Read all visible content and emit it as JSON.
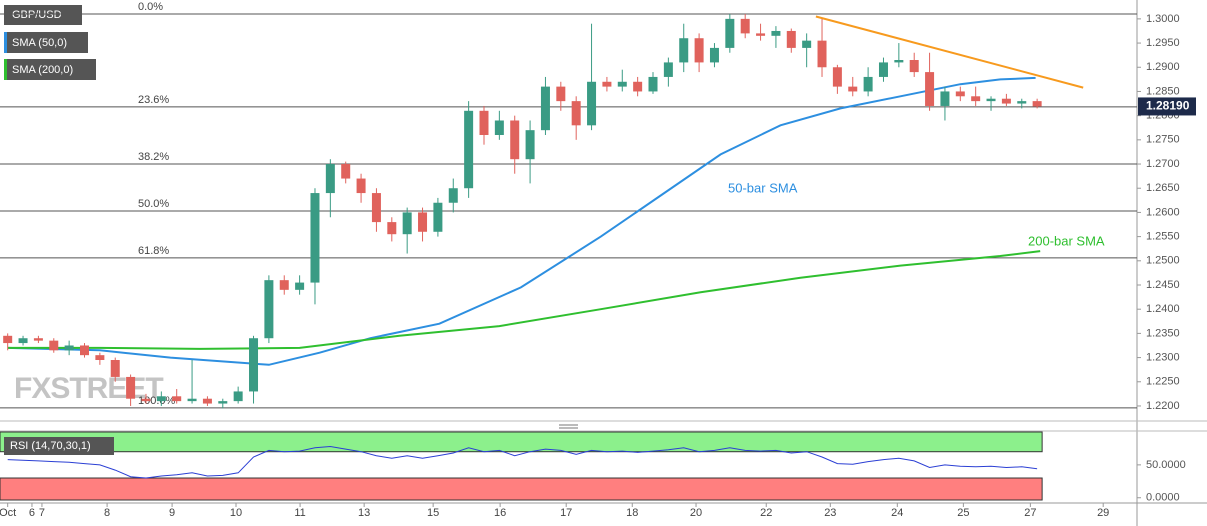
{
  "chart_data": [
    {
      "type": "candlestick",
      "title": "GBP/USD",
      "x": [
        0,
        1,
        2,
        3,
        4,
        5,
        6,
        7,
        8,
        9,
        10,
        11,
        12,
        13,
        14,
        15,
        16,
        17,
        18,
        19,
        20,
        21,
        22,
        23,
        24,
        25,
        26,
        27,
        28,
        29,
        30,
        31,
        32,
        33,
        34,
        35,
        36,
        37,
        38,
        39,
        40,
        41,
        42,
        43,
        44,
        45,
        46,
        47,
        48,
        49,
        50,
        51,
        52,
        53,
        54,
        55,
        56,
        57,
        58,
        59,
        60,
        61,
        62,
        63,
        64,
        65,
        66,
        67
      ],
      "open": [
        1.2345,
        1.233,
        1.234,
        1.2335,
        1.2315,
        1.2325,
        1.2305,
        1.2295,
        1.226,
        1.2215,
        1.221,
        1.222,
        1.221,
        1.2215,
        1.2205,
        1.221,
        1.223,
        1.234,
        1.246,
        1.244,
        1.2455,
        1.264,
        1.27,
        1.267,
        1.264,
        1.258,
        1.2555,
        1.26,
        1.256,
        1.262,
        1.265,
        1.281,
        1.276,
        1.279,
        1.271,
        1.277,
        1.286,
        1.283,
        1.278,
        1.287,
        1.286,
        1.287,
        1.285,
        1.288,
        1.291,
        1.296,
        1.291,
        1.294,
        1.3,
        1.297,
        1.2965,
        1.2975,
        1.294,
        1.2955,
        1.29,
        1.286,
        1.285,
        1.288,
        1.291,
        1.2915,
        1.289,
        1.282,
        1.285,
        1.284,
        1.283,
        1.2835,
        1.2825,
        1.283
      ],
      "high": [
        1.235,
        1.2345,
        1.2345,
        1.234,
        1.2335,
        1.233,
        1.231,
        1.23,
        1.2265,
        1.2225,
        1.223,
        1.2235,
        1.2295,
        1.222,
        1.2215,
        1.224,
        1.2345,
        1.247,
        1.247,
        1.247,
        1.265,
        1.271,
        1.2705,
        1.268,
        1.265,
        1.259,
        1.261,
        1.261,
        1.263,
        1.267,
        1.283,
        1.282,
        1.281,
        1.28,
        1.279,
        1.288,
        1.287,
        1.284,
        1.299,
        1.288,
        1.2895,
        1.288,
        1.289,
        1.292,
        1.299,
        1.297,
        1.295,
        1.301,
        1.301,
        1.299,
        1.2985,
        1.298,
        1.297,
        1.3,
        1.2905,
        1.288,
        1.29,
        1.292,
        1.295,
        1.293,
        1.293,
        1.286,
        1.286,
        1.286,
        1.284,
        1.2845,
        1.2835,
        1.2835
      ],
      "low": [
        1.2315,
        1.2325,
        1.233,
        1.231,
        1.2305,
        1.23,
        1.2285,
        1.225,
        1.22,
        1.2205,
        1.22,
        1.2205,
        1.2205,
        1.22,
        1.2195,
        1.2205,
        1.2205,
        1.233,
        1.243,
        1.243,
        1.241,
        1.259,
        1.266,
        1.262,
        1.256,
        1.254,
        1.2515,
        1.254,
        1.255,
        1.26,
        1.263,
        1.274,
        1.275,
        1.268,
        1.266,
        1.276,
        1.281,
        1.275,
        1.277,
        1.285,
        1.285,
        1.284,
        1.2845,
        1.286,
        1.289,
        1.289,
        1.29,
        1.293,
        1.296,
        1.2955,
        1.294,
        1.293,
        1.29,
        1.288,
        1.2845,
        1.284,
        1.284,
        1.287,
        1.29,
        1.288,
        1.281,
        1.279,
        1.283,
        1.282,
        1.281,
        1.282,
        1.2815,
        1.2815
      ],
      "close": [
        1.233,
        1.234,
        1.2335,
        1.2315,
        1.2325,
        1.2305,
        1.2295,
        1.226,
        1.2215,
        1.221,
        1.222,
        1.221,
        1.2215,
        1.2205,
        1.221,
        1.223,
        1.234,
        1.246,
        1.244,
        1.2455,
        1.264,
        1.27,
        1.267,
        1.264,
        1.258,
        1.2555,
        1.26,
        1.256,
        1.262,
        1.265,
        1.281,
        1.276,
        1.279,
        1.271,
        1.277,
        1.286,
        1.283,
        1.278,
        1.287,
        1.286,
        1.287,
        1.285,
        1.288,
        1.291,
        1.296,
        1.291,
        1.294,
        1.3,
        1.297,
        1.2965,
        1.2975,
        1.294,
        1.2955,
        1.29,
        1.286,
        1.285,
        1.288,
        1.291,
        1.2915,
        1.289,
        1.282,
        1.285,
        1.284,
        1.283,
        1.2835,
        1.2825,
        1.283,
        1.2819
      ],
      "up_color": "#3a9b84",
      "down_color": "#e0625c",
      "series": [
        {
          "name": "SMA (50,0)",
          "color": "#2d8fe0",
          "x": [
            0,
            6,
            10.6,
            17,
            20.3,
            23.6,
            28.1,
            33.4,
            38.6,
            42.5,
            46.4,
            50.3,
            54.2,
            58.1,
            62,
            64.6,
            66.9
          ],
          "values": [
            1.232,
            1.2315,
            1.23,
            1.2285,
            1.231,
            1.234,
            1.237,
            1.2445,
            1.255,
            1.2635,
            1.272,
            1.278,
            1.2815,
            1.284,
            1.2865,
            1.2875,
            1.2878
          ]
        },
        {
          "name": "SMA (200,0)",
          "color": "#2fbf2f",
          "x": [
            0,
            6,
            12.5,
            19,
            25.5,
            32,
            38.6,
            45.1,
            51.6,
            58.1,
            64.6,
            67.2
          ],
          "values": [
            1.232,
            1.232,
            1.2318,
            1.232,
            1.2345,
            1.2365,
            1.24,
            1.2435,
            1.2465,
            1.249,
            1.251,
            1.252
          ]
        }
      ],
      "trendline": {
        "color": "#f79a1e",
        "x": [
          52.6,
          70
        ],
        "values": [
          1.3005,
          1.2858
        ]
      },
      "fib_levels": [
        {
          "label": "0.0%",
          "value": 1.301
        },
        {
          "label": "23.6%",
          "value": 1.2818
        },
        {
          "label": "38.2%",
          "value": 1.27
        },
        {
          "label": "50.0%",
          "value": 1.2603
        },
        {
          "label": "61.8%",
          "value": 1.2506
        },
        {
          "label": "100.0%",
          "value": 1.2196
        }
      ],
      "last_price": {
        "value": 1.2819,
        "label": "1.28190"
      },
      "annotations": [
        "50-bar SMA",
        "200-bar SMA"
      ],
      "watermark": "FXSTREET",
      "xlim": [
        -0.5,
        73.5
      ],
      "xticks": [
        {
          "value": 0,
          "label": "Oct"
        },
        {
          "value": 1.58,
          "label": "6"
        },
        {
          "value": 2.23,
          "label": "7"
        },
        {
          "value": 6.47,
          "label": "8"
        },
        {
          "value": 10.7,
          "label": "9"
        },
        {
          "value": 14.86,
          "label": "10"
        },
        {
          "value": 19.03,
          "label": "11"
        },
        {
          "value": 23.2,
          "label": "13"
        },
        {
          "value": 27.69,
          "label": "15"
        },
        {
          "value": 32.05,
          "label": "16"
        },
        {
          "value": 36.35,
          "label": "17"
        },
        {
          "value": 40.65,
          "label": "18"
        },
        {
          "value": 44.8,
          "label": "20"
        },
        {
          "value": 49.37,
          "label": "22"
        },
        {
          "value": 53.54,
          "label": "23"
        },
        {
          "value": 57.9,
          "label": "24"
        },
        {
          "value": 62.2,
          "label": "25"
        },
        {
          "value": 66.56,
          "label": "27"
        },
        {
          "value": 71.3,
          "label": "29"
        }
      ],
      "ylim": [
        1.2171,
        1.3039
      ],
      "yticks": [
        {
          "value": 1.22,
          "label": "1.2200"
        },
        {
          "value": 1.225,
          "label": "1.2250"
        },
        {
          "value": 1.23,
          "label": "1.2300"
        },
        {
          "value": 1.235,
          "label": "1.2350"
        },
        {
          "value": 1.24,
          "label": "1.2400"
        },
        {
          "value": 1.245,
          "label": "1.2450"
        },
        {
          "value": 1.25,
          "label": "1.2500"
        },
        {
          "value": 1.255,
          "label": "1.2550"
        },
        {
          "value": 1.26,
          "label": "1.2600"
        },
        {
          "value": 1.265,
          "label": "1.2650"
        },
        {
          "value": 1.27,
          "label": "1.2700"
        },
        {
          "value": 1.275,
          "label": "1.2750"
        },
        {
          "value": 1.28,
          "label": "1.2800"
        },
        {
          "value": 1.285,
          "label": "1.2850"
        },
        {
          "value": 1.29,
          "label": "1.2900"
        },
        {
          "value": 1.295,
          "label": "1.2950"
        },
        {
          "value": 1.3,
          "label": "1.3000"
        }
      ]
    },
    {
      "type": "line",
      "title": "RSI (14,70,30,1)",
      "color": "#2b3fd4",
      "values": [
        58,
        57,
        56,
        55,
        54,
        52,
        50,
        42,
        32,
        30,
        33,
        35,
        38,
        33,
        34,
        38,
        62,
        72,
        70,
        71,
        76,
        78,
        74,
        70,
        64,
        60,
        64,
        60,
        64,
        68,
        76,
        70,
        72,
        64,
        70,
        74,
        72,
        66,
        72,
        70,
        71,
        69,
        71,
        73,
        76,
        70,
        72,
        76,
        72,
        71,
        72,
        68,
        70,
        62,
        52,
        51,
        55,
        58,
        60,
        56,
        46,
        50,
        48,
        47,
        48,
        46,
        47,
        44
      ],
      "bands": [
        30,
        70
      ],
      "band_colors": [
        "#ff7f7f",
        "#8cf08c"
      ],
      "ylim": [
        -8,
        100
      ],
      "yticks": [
        {
          "value": 50,
          "label": "50.0000"
        },
        {
          "value": 0,
          "label": "0.0000"
        }
      ]
    }
  ]
}
